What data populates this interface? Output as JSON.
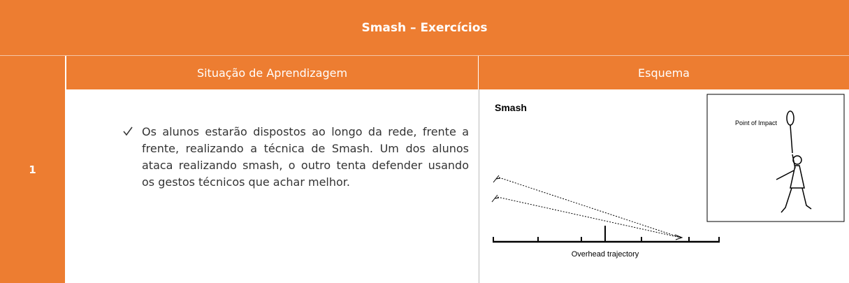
{
  "header": {
    "title": "Smash – Exercícios"
  },
  "table": {
    "number": "1",
    "columns": [
      "Situação de Aprendizagem",
      "Esquema"
    ],
    "rows": [
      {
        "text": "Os alunos estarão dispostos ao longo da rede, frente a frente, realizando a técnica de Smash. Um dos alunos ataca realizando smash, o outro tenta defender usando os gestos técnicos que achar melhor."
      }
    ]
  },
  "diagram": {
    "title": "Smash",
    "impact_label": "Point of Impact",
    "trajectory_label": "Overhead trajectory"
  }
}
